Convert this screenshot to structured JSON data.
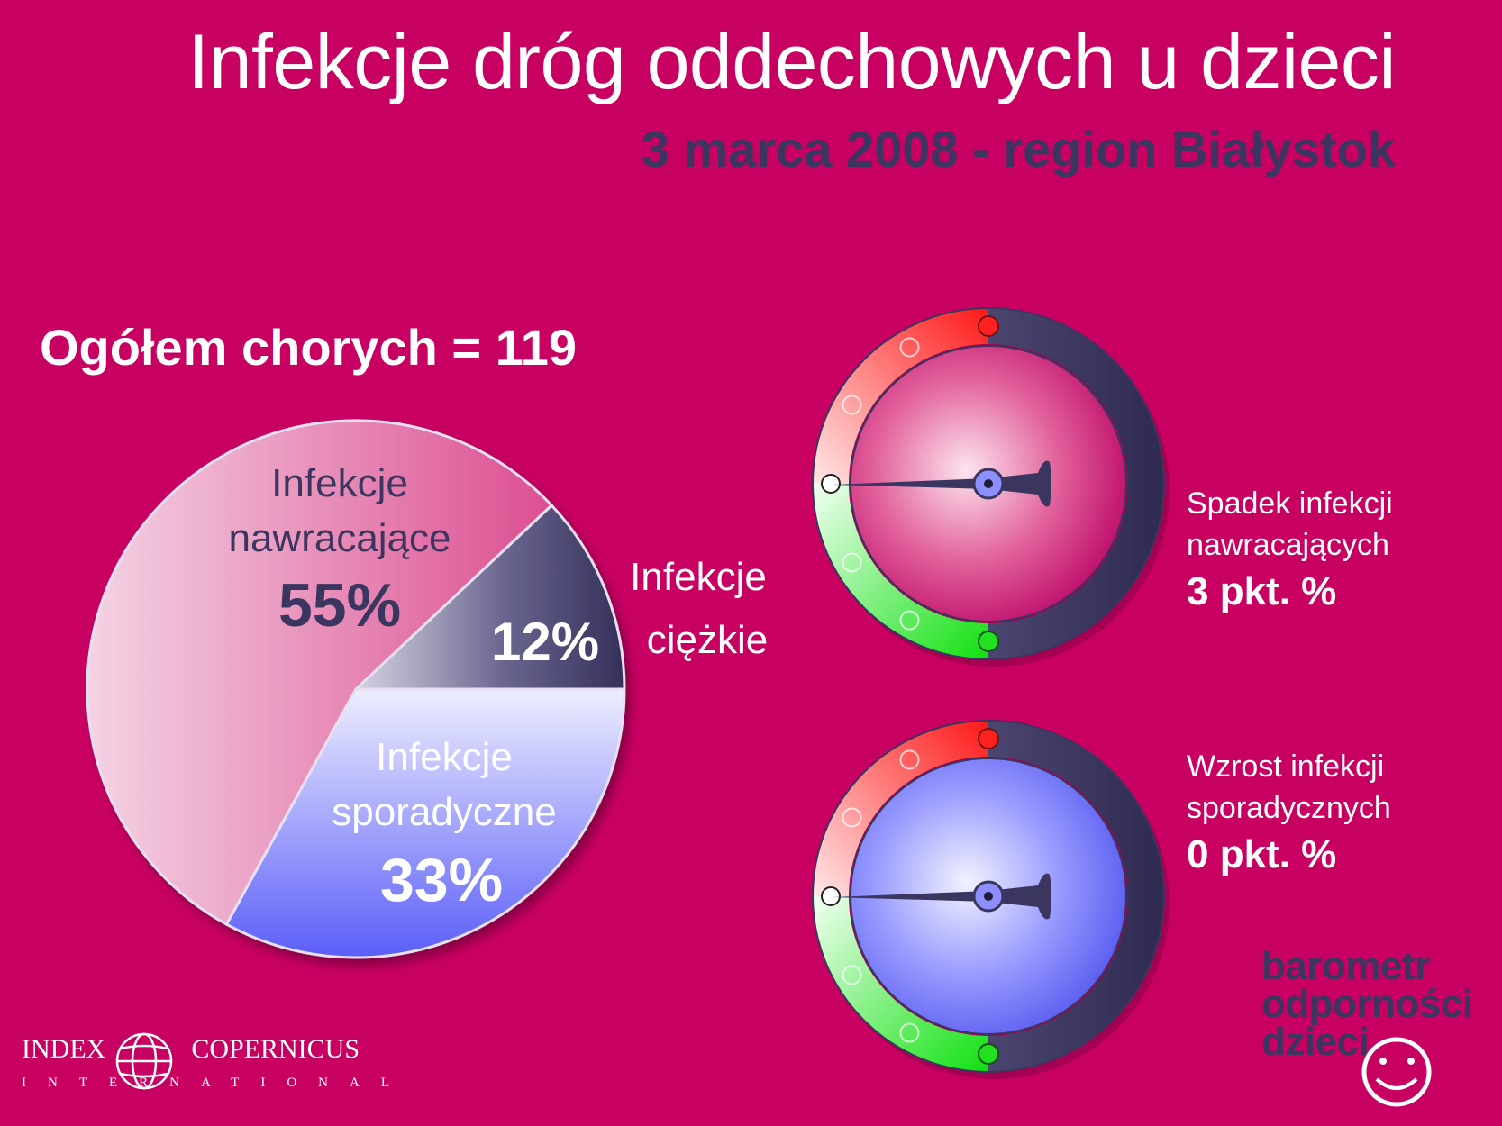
{
  "header": {
    "title": "Infekcje dróg oddechowych u dzieci",
    "subtitle": "3 marca 2008 - region Białystok"
  },
  "summary": {
    "total": "Ogółem chorych = 119"
  },
  "chart_data": {
    "type": "pie",
    "slices": [
      {
        "line1": "Infekcje",
        "line2": "nawracające",
        "value": 55,
        "pct_label": "55%",
        "color": "#e0609a"
      },
      {
        "line1": "Infekcje",
        "line2": "ciężkie",
        "value": 12,
        "pct_label": "12%",
        "color": "#3b3660"
      },
      {
        "line1": "Infekcje",
        "line2": "sporadyczne",
        "value": 33,
        "pct_label": "33%",
        "color": "#7d80ff"
      }
    ]
  },
  "gauges": [
    {
      "line1": "Spadek infekcji",
      "line2": "nawracających",
      "value_label": "3 pkt. %",
      "face_color": "#cc1a78"
    },
    {
      "line1": "Wzrost infekcji",
      "line2": "sporadycznych",
      "value_label": "0 pkt. %",
      "face_color": "#6f72ff"
    }
  ],
  "brand": {
    "line1": "barometr",
    "line2": "odporności",
    "line3": "dzieci"
  },
  "logo": {
    "left": "INDEX",
    "right": "COPERNICUS",
    "sub": "INTERNATIONAL"
  },
  "colors": {
    "background": "#c80062",
    "dark": "#3b3660",
    "red": "#ff2020",
    "green": "#20e020"
  }
}
